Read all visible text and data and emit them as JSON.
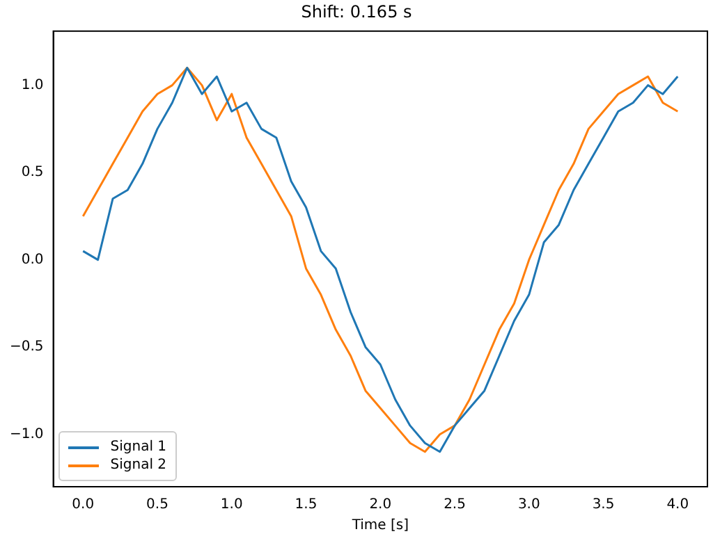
{
  "chart_data": {
    "type": "line",
    "title": "Shift: 0.165 s",
    "xlabel": "Time [s]",
    "xlim": [
      -0.2,
      4.2
    ],
    "xticks": [
      {
        "value": 0,
        "label": "0.0"
      },
      0.5,
      {
        "value": 1,
        "label": "1.0"
      },
      1.5,
      {
        "value": 2,
        "label": "2.0"
      },
      2.5,
      {
        "value": 3,
        "label": "3.0"
      },
      3.5,
      {
        "value": 4,
        "label": "4.0"
      }
    ],
    "ylim": [
      -1.3,
      1.31
    ],
    "yticks": [
      {
        "value": -1,
        "label": "−1.0"
      },
      {
        "value": -0.5,
        "label": "−0.5"
      },
      {
        "value": 0,
        "label": "0.0"
      },
      0.5,
      {
        "value": 1,
        "label": "1.0"
      }
    ],
    "x": [
      0,
      0.1,
      0.2,
      0.3,
      0.4,
      0.5,
      0.6,
      0.7,
      0.8,
      0.9,
      1.0,
      1.1,
      1.2,
      1.3,
      1.4,
      1.5,
      1.6,
      1.7,
      1.8,
      1.9,
      2.0,
      2.1,
      2.2,
      2.3,
      2.4,
      2.5,
      2.6,
      2.7,
      2.8,
      2.9,
      3.0,
      3.1,
      3.2,
      3.3,
      3.4,
      3.5,
      3.6,
      3.7,
      3.8,
      3.9,
      4.0
    ],
    "series": [
      {
        "name": "Signal 1",
        "color": "#1f77b4",
        "values": [
          0.05,
          0.0,
          0.35,
          0.4,
          0.55,
          0.75,
          0.9,
          1.1,
          0.95,
          1.05,
          0.85,
          0.9,
          0.75,
          0.7,
          0.45,
          0.3,
          0.05,
          -0.05,
          -0.3,
          -0.5,
          -0.6,
          -0.8,
          -0.95,
          -1.05,
          -1.1,
          -0.95,
          -0.85,
          -0.75,
          -0.55,
          -0.35,
          -0.2,
          0.1,
          0.2,
          0.4,
          0.55,
          0.7,
          0.85,
          0.9,
          1.0,
          0.95,
          1.05
        ]
      },
      {
        "name": "Signal 2",
        "color": "#ff7f0e",
        "values": [
          0.25,
          0.4,
          0.55,
          0.7,
          0.85,
          0.95,
          1.0,
          1.1,
          1.0,
          0.8,
          0.95,
          0.7,
          0.55,
          0.4,
          0.25,
          -0.05,
          -0.2,
          -0.4,
          -0.55,
          -0.75,
          -0.85,
          -0.95,
          -1.05,
          -1.1,
          -1.0,
          -0.95,
          -0.8,
          -0.6,
          -0.4,
          -0.25,
          0.0,
          0.2,
          0.4,
          0.55,
          0.75,
          0.85,
          0.95,
          1.0,
          1.05,
          0.9,
          0.85
        ]
      }
    ],
    "grid": false,
    "legend": "bottom left",
    "marker": "none",
    "line_style": "solid"
  }
}
